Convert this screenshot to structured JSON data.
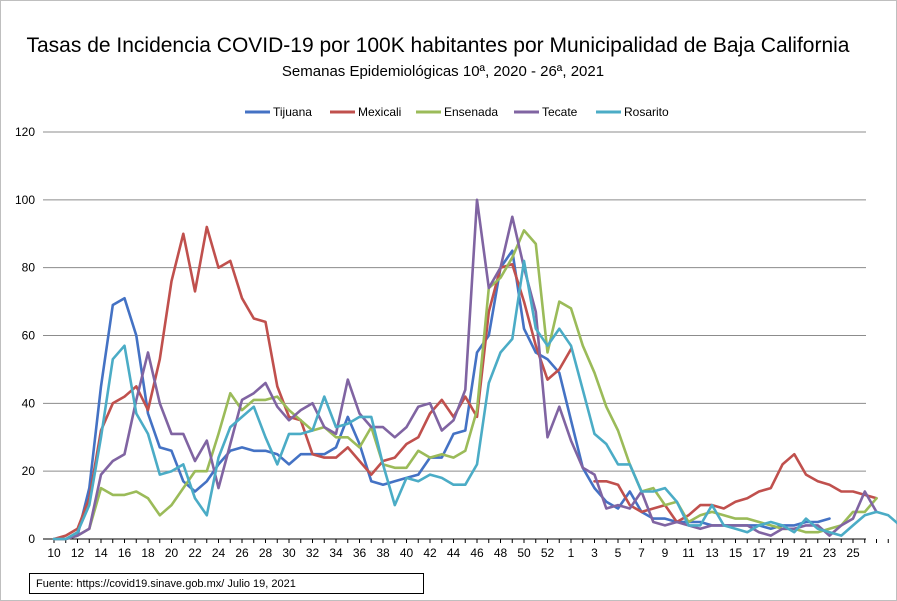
{
  "chart_data": {
    "type": "line",
    "title": "Tasas de Incidencia COVID-19 por 100K habitantes por Municipalidad de Baja California",
    "subtitle": "Semanas Epidemiológicas 10ª, 2020  -  26ª, 2021",
    "x_labels": [
      "10",
      "12",
      "14",
      "16",
      "18",
      "20",
      "22",
      "24",
      "26",
      "28",
      "30",
      "32",
      "34",
      "36",
      "38",
      "40",
      "42",
      "44",
      "46",
      "48",
      "50",
      "52",
      "1",
      "3",
      "5",
      "7",
      "9",
      "11",
      "13",
      "15",
      "17",
      "19",
      "21",
      "23",
      "25"
    ],
    "ylim": [
      0,
      120
    ],
    "yticks": [
      0,
      20,
      40,
      60,
      80,
      100,
      120
    ],
    "grid": true,
    "legend_position": "top",
    "series": [
      {
        "name": "Tijuana",
        "color": "#4472c4",
        "values": [
          0,
          0,
          1,
          15,
          45,
          69,
          71,
          60,
          37,
          27,
          26,
          17,
          14,
          17,
          22,
          26,
          27,
          26,
          26,
          25,
          22,
          25,
          25,
          25,
          27,
          36,
          28,
          17,
          16,
          17,
          18,
          19,
          24,
          24,
          31,
          32,
          55,
          60,
          80,
          85,
          62,
          55,
          53,
          49,
          35,
          21,
          15,
          11,
          9,
          14,
          8,
          6,
          6,
          5,
          5,
          5,
          4,
          4,
          4,
          4,
          4,
          3,
          4,
          4,
          5,
          5,
          6
        ]
      },
      {
        "name": "Mexicali",
        "color": "#c0504d",
        "values": [
          0,
          1,
          3,
          12,
          32,
          40,
          42,
          45,
          38,
          53,
          76,
          90,
          73,
          92,
          80,
          82,
          71,
          65,
          64,
          45,
          36,
          35,
          25,
          24,
          24,
          27,
          23,
          19,
          23,
          24,
          28,
          30,
          37,
          41,
          36,
          42,
          36,
          67,
          80,
          81,
          70,
          57,
          47,
          50,
          56,
          null,
          17,
          17,
          16,
          10,
          8,
          9,
          10,
          5,
          7,
          10,
          10,
          9,
          11,
          12,
          14,
          15,
          22,
          25,
          19,
          17,
          16,
          14,
          14,
          13,
          12
        ]
      },
      {
        "name": "Ensenada",
        "color": "#9bbb59",
        "values": [
          0,
          0,
          1,
          3,
          15,
          13,
          13,
          14,
          12,
          7,
          10,
          15,
          20,
          20,
          31,
          43,
          38,
          41,
          41,
          42,
          38,
          35,
          32,
          33,
          30,
          30,
          27,
          33,
          22,
          21,
          21,
          26,
          24,
          25,
          24,
          26,
          38,
          74,
          77,
          83,
          91,
          87,
          55,
          70,
          68,
          57,
          49,
          39,
          32,
          22,
          14,
          15,
          10,
          11,
          5,
          7,
          8,
          7,
          6,
          6,
          5,
          4,
          3,
          3,
          2,
          2,
          3,
          4,
          8,
          8,
          12
        ]
      },
      {
        "name": "Tecate",
        "color": "#8064a2",
        "values": [
          0,
          0,
          1,
          3,
          19,
          23,
          25,
          41,
          55,
          40,
          31,
          31,
          23,
          29,
          15,
          28,
          41,
          43,
          46,
          39,
          35,
          38,
          40,
          33,
          31,
          47,
          37,
          33,
          33,
          30,
          33,
          39,
          40,
          32,
          35,
          44,
          100,
          74,
          80,
          95,
          80,
          67,
          30,
          39,
          29,
          21,
          19,
          9,
          10,
          9,
          14,
          5,
          4,
          5,
          4,
          3,
          4,
          4,
          4,
          4,
          2,
          1,
          3,
          3,
          4,
          4,
          1,
          4,
          6,
          14,
          8
        ]
      },
      {
        "name": "Rosarito",
        "color": "#4bacc6",
        "values": [
          0,
          0,
          2,
          10,
          30,
          53,
          57,
          37,
          31,
          19,
          20,
          22,
          12,
          7,
          24,
          33,
          36,
          39,
          30,
          22,
          31,
          31,
          32,
          42,
          33,
          34,
          36,
          36,
          22,
          10,
          18,
          17,
          19,
          18,
          16,
          16,
          22,
          46,
          55,
          59,
          82,
          62,
          57,
          62,
          57,
          44,
          31,
          28,
          22,
          22,
          14,
          14,
          15,
          11,
          4,
          4,
          10,
          4,
          3,
          2,
          4,
          5,
          4,
          2,
          6,
          3,
          2,
          1,
          4,
          7,
          8,
          7,
          4
        ]
      }
    ]
  },
  "source": "Fuente:  https://covid19.sinave.gob.mx/     Julio 19, 2021"
}
